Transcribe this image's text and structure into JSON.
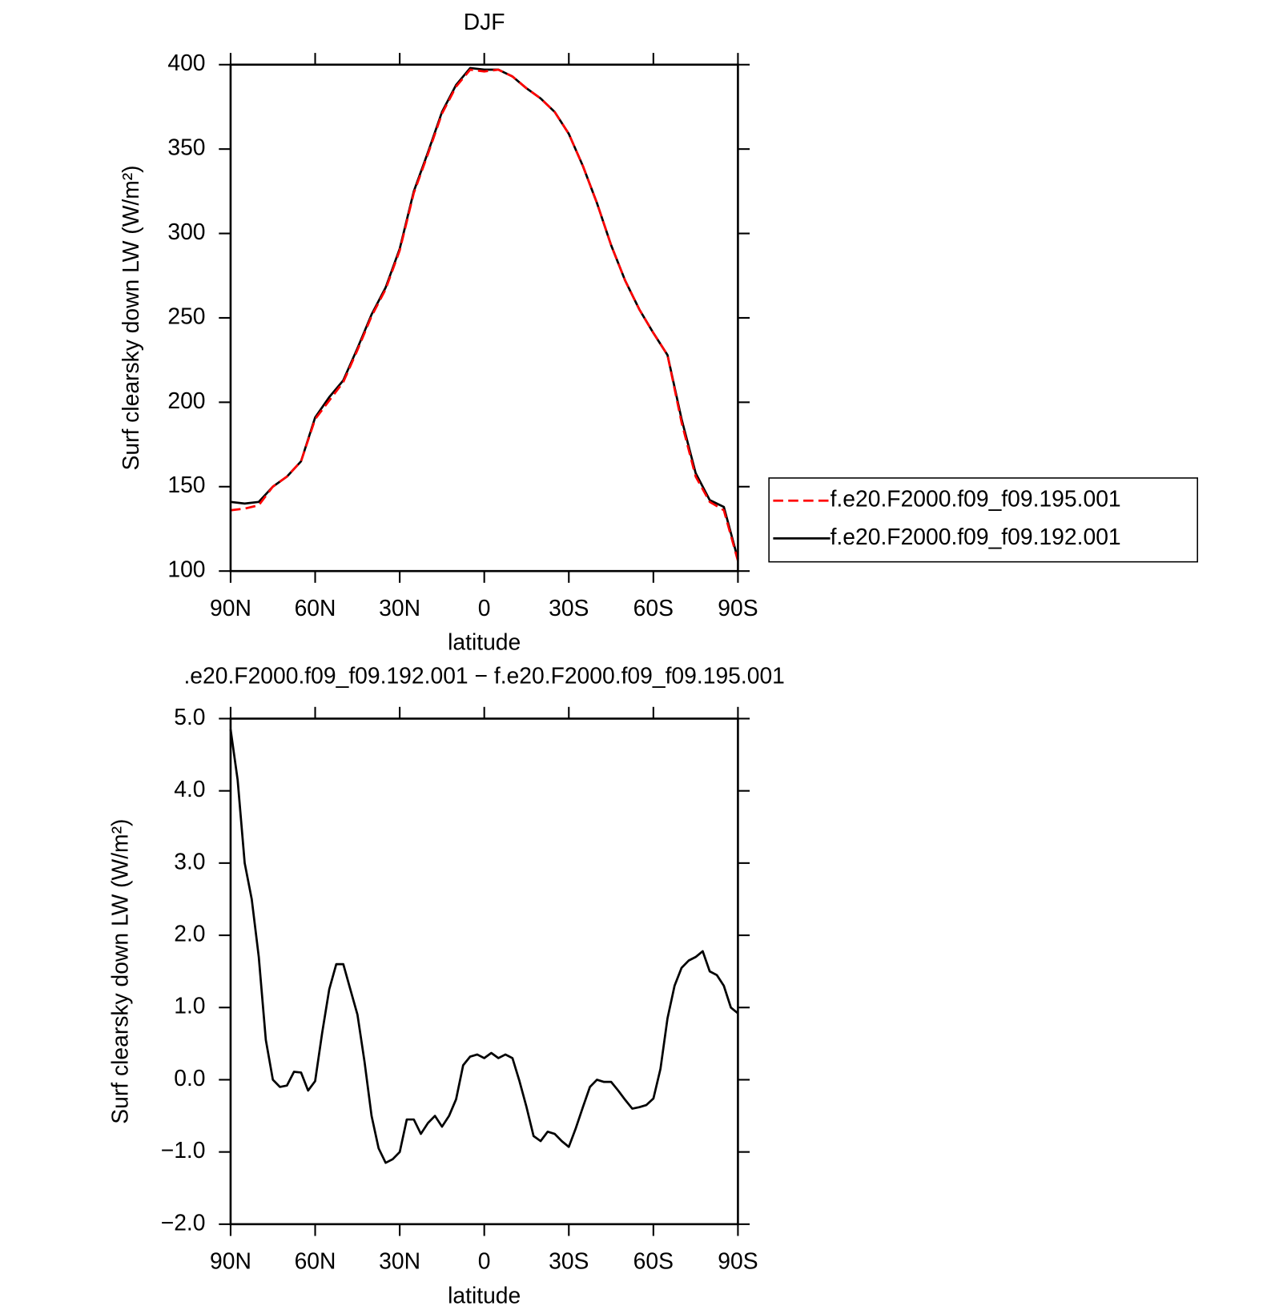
{
  "chart_data": [
    {
      "type": "line",
      "title": "DJF",
      "x_label": "latitude",
      "y_label": "Surf clearsky down LW (W/m²)",
      "x": [
        90,
        85,
        80,
        75,
        70,
        65,
        60,
        55,
        50,
        45,
        40,
        35,
        30,
        25,
        20,
        15,
        10,
        5,
        0,
        -5,
        -10,
        -15,
        -20,
        -25,
        -30,
        -35,
        -40,
        -45,
        -50,
        -55,
        -60,
        -65,
        -70,
        -75,
        -80,
        -85,
        -90
      ],
      "series": [
        {
          "name": "f.e20.F2000.f09_f09.195.001",
          "color": "#ff0000",
          "style": "dashed",
          "values": [
            136,
            137,
            139,
            150,
            156,
            165,
            190,
            201,
            212,
            231,
            251,
            267,
            290,
            324,
            347,
            371,
            387,
            397,
            396,
            397,
            393,
            386,
            380,
            372,
            359,
            340,
            318,
            293,
            272,
            255,
            241,
            228,
            188,
            156,
            141,
            136,
            106
          ]
        },
        {
          "name": "f.e20.F2000.f09_f09.192.001",
          "color": "#000000",
          "style": "solid",
          "values": [
            141,
            140,
            141,
            150,
            156,
            165,
            191,
            203,
            213,
            232,
            252,
            268,
            291,
            325,
            348,
            372,
            388,
            398,
            397,
            397,
            393,
            386,
            380,
            372,
            359,
            340,
            318,
            293,
            272,
            255,
            241,
            228,
            190,
            158,
            142,
            138,
            107
          ]
        }
      ],
      "xlim": [
        90,
        -90
      ],
      "xticks": [
        {
          "value": 90,
          "label": "90N"
        },
        {
          "value": 60,
          "label": "60N"
        },
        {
          "value": 30,
          "label": "30N"
        },
        0,
        {
          "value": -30,
          "label": "30S"
        },
        {
          "value": -60,
          "label": "60S"
        },
        {
          "value": -90,
          "label": "90S"
        }
      ],
      "ylim": [
        100,
        400
      ],
      "yticks": [
        100,
        150,
        200,
        250,
        300,
        350,
        400
      ],
      "legend": "right"
    },
    {
      "type": "line",
      "title": ".e20.F2000.f09_f09.192.001 − f.e20.F2000.f09_f09.195.001",
      "x_label": "latitude",
      "y_label": "Surf clearsky down LW (W/m²)",
      "x": [
        90,
        87.5,
        85,
        82.5,
        80,
        77.5,
        75,
        72.5,
        70,
        67.5,
        65,
        62.5,
        60,
        57.5,
        55,
        52.5,
        50,
        47.5,
        45,
        42.5,
        40,
        37.5,
        35,
        32.5,
        30,
        27.5,
        25,
        22.5,
        20,
        17.5,
        15,
        12.5,
        10,
        7.5,
        5,
        2.5,
        0,
        -2.5,
        -5,
        -7.5,
        -10,
        -12.5,
        -15,
        -17.5,
        -20,
        -22.5,
        -25,
        -27.5,
        -30,
        -32.5,
        -35,
        -37.5,
        -40,
        -42.5,
        -45,
        -47.5,
        -50,
        -52.5,
        -55,
        -57.5,
        -60,
        -62.5,
        -65,
        -67.5,
        -70,
        -72.5,
        -75,
        -77.5,
        -80,
        -82.5,
        -85,
        -87.5,
        -90
      ],
      "series": [
        {
          "name": "difference",
          "color": "#000000",
          "style": "solid",
          "values": [
            4.85,
            4.15,
            3.0,
            2.5,
            1.7,
            0.55,
            0.0,
            -0.1,
            -0.08,
            0.11,
            0.1,
            -0.15,
            -0.02,
            0.65,
            1.25,
            1.6,
            1.6,
            1.25,
            0.9,
            0.25,
            -0.5,
            -0.95,
            -1.15,
            -1.1,
            -1.0,
            -0.55,
            -0.55,
            -0.75,
            -0.6,
            -0.5,
            -0.65,
            -0.5,
            -0.27,
            0.2,
            0.32,
            0.35,
            0.3,
            0.37,
            0.3,
            0.35,
            0.3,
            -0.02,
            -0.38,
            -0.78,
            -0.85,
            -0.72,
            -0.75,
            -0.85,
            -0.93,
            -0.67,
            -0.38,
            -0.1,
            0.0,
            -0.03,
            -0.03,
            -0.15,
            -0.28,
            -0.4,
            -0.38,
            -0.35,
            -0.26,
            0.15,
            0.85,
            1.3,
            1.55,
            1.65,
            1.7,
            1.78,
            1.5,
            1.45,
            1.3,
            1.0,
            0.92
          ]
        }
      ],
      "xlim": [
        90,
        -90
      ],
      "xticks": [
        {
          "value": 90,
          "label": "90N"
        },
        {
          "value": 60,
          "label": "60N"
        },
        {
          "value": 30,
          "label": "30N"
        },
        0,
        {
          "value": -30,
          "label": "30S"
        },
        {
          "value": -60,
          "label": "60S"
        },
        {
          "value": -90,
          "label": "90S"
        }
      ],
      "ylim": [
        -2,
        5
      ],
      "yticks": [
        {
          "value": -2,
          "label": "−2.0"
        },
        {
          "value": -1,
          "label": "−1.0"
        },
        {
          "value": 0,
          "label": "0.0"
        },
        {
          "value": 1,
          "label": "1.0"
        },
        {
          "value": 2,
          "label": "2.0"
        },
        {
          "value": 3,
          "label": "3.0"
        },
        {
          "value": 4,
          "label": "4.0"
        },
        {
          "value": 5,
          "label": "5.0"
        }
      ]
    }
  ]
}
